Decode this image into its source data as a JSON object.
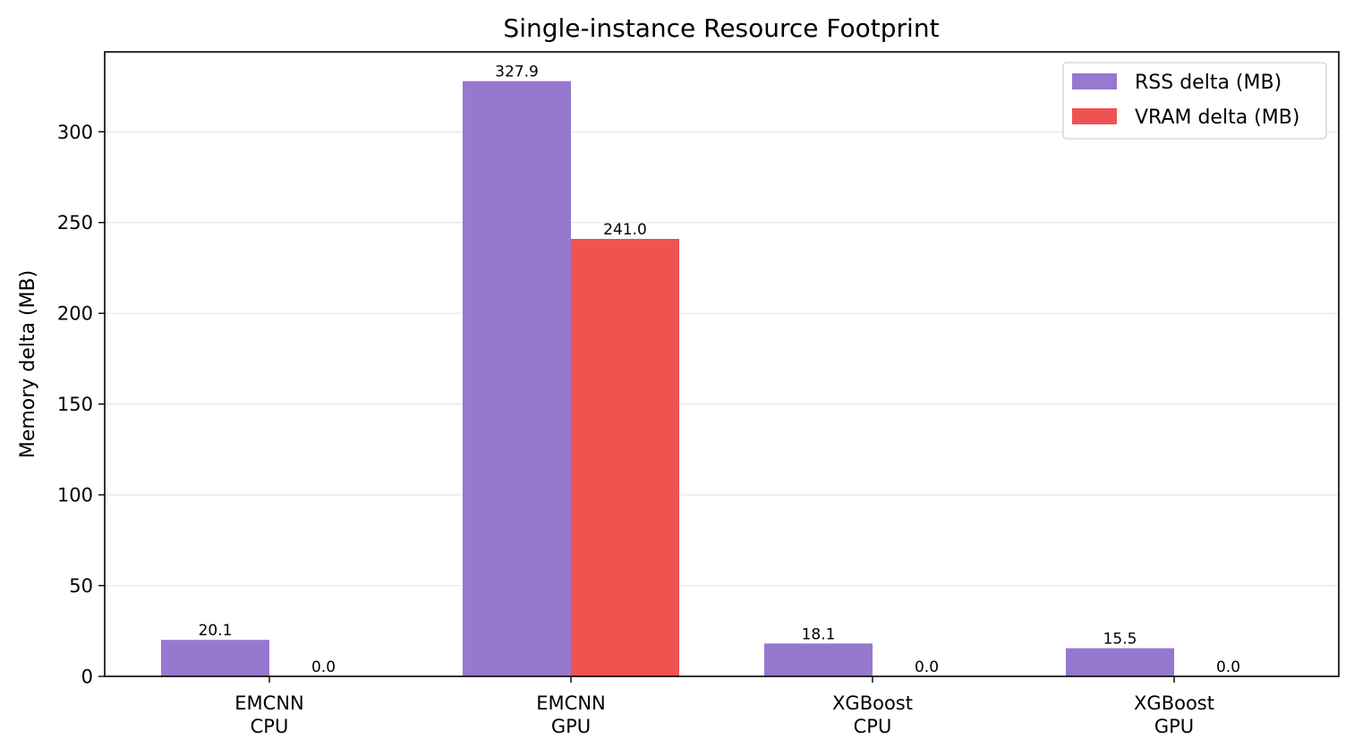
{
  "chart_data": {
    "type": "bar",
    "title": "Single-instance Resource Footprint",
    "xlabel": "",
    "ylabel": "Memory delta (MB)",
    "categories": [
      [
        "EMCNN",
        "CPU"
      ],
      [
        "EMCNN",
        "GPU"
      ],
      [
        "XGBoost",
        "CPU"
      ],
      [
        "XGBoost",
        "GPU"
      ]
    ],
    "series": [
      {
        "name": "RSS delta (MB)",
        "color": "#9678cf",
        "values": [
          20.1,
          327.9,
          18.1,
          15.5
        ],
        "labels": [
          "20.1",
          "327.9",
          "18.1",
          "15.5"
        ]
      },
      {
        "name": "VRAM delta (MB)",
        "color": "#ef5350",
        "values": [
          0.0,
          241.0,
          0.0,
          0.0
        ],
        "labels": [
          "0.0",
          "241.0",
          "0.0",
          "0.0"
        ]
      }
    ],
    "ylim": [
      0,
      344
    ],
    "yticks": [
      0,
      50,
      100,
      150,
      200,
      250,
      300
    ],
    "grid": "horizontal",
    "legend": "top-right"
  }
}
